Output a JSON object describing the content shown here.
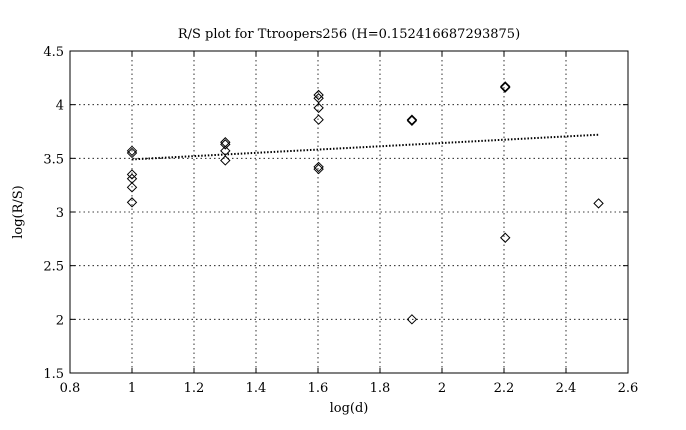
{
  "chart_data": {
    "type": "scatter",
    "title": "R/S plot for Ttroopers256 (H=0.152416687293875)",
    "xlabel": "log(d)",
    "ylabel": "log(R/S)",
    "xlim": [
      0.8,
      2.6
    ],
    "ylim": [
      1.5,
      4.5
    ],
    "xticks": [
      0.8,
      1,
      1.2,
      1.4,
      1.6,
      1.8,
      2,
      2.2,
      2.4,
      2.6
    ],
    "yticks": [
      1.5,
      2,
      2.5,
      3,
      3.5,
      4,
      4.5
    ],
    "xtick_labels": [
      "0.8",
      "1",
      "1.2",
      "1.4",
      "1.6",
      "1.8",
      "2",
      "2.2",
      "2.4",
      "2.6"
    ],
    "ytick_labels": [
      "1.5",
      "2",
      "2.5",
      "3",
      "3.5",
      "4",
      "4.5"
    ],
    "grid": true,
    "grid_style": "dotted",
    "series": [
      {
        "marker": "diamond",
        "color": "#000000",
        "points": [
          {
            "x": 1.0,
            "y": 3.57
          },
          {
            "x": 1.0,
            "y": 3.55
          },
          {
            "x": 1.0,
            "y": 3.35
          },
          {
            "x": 1.0,
            "y": 3.31
          },
          {
            "x": 1.0,
            "y": 3.23
          },
          {
            "x": 1.0,
            "y": 3.09
          },
          {
            "x": 1.301,
            "y": 3.65
          },
          {
            "x": 1.301,
            "y": 3.63
          },
          {
            "x": 1.301,
            "y": 3.57
          },
          {
            "x": 1.301,
            "y": 3.48
          },
          {
            "x": 1.602,
            "y": 4.09
          },
          {
            "x": 1.602,
            "y": 4.06
          },
          {
            "x": 1.602,
            "y": 3.97
          },
          {
            "x": 1.602,
            "y": 3.86
          },
          {
            "x": 1.602,
            "y": 3.42
          },
          {
            "x": 1.602,
            "y": 3.4
          },
          {
            "x": 1.903,
            "y": 3.86
          },
          {
            "x": 1.903,
            "y": 3.85
          },
          {
            "x": 1.903,
            "y": 2.0
          },
          {
            "x": 2.204,
            "y": 4.17
          },
          {
            "x": 2.204,
            "y": 4.16
          },
          {
            "x": 2.204,
            "y": 2.76
          },
          {
            "x": 2.505,
            "y": 3.08
          }
        ]
      },
      {
        "type": "line",
        "style": "dotted",
        "color": "#000000",
        "x": [
          1.0,
          2.505
        ],
        "y": [
          3.49,
          3.72
        ]
      }
    ]
  }
}
